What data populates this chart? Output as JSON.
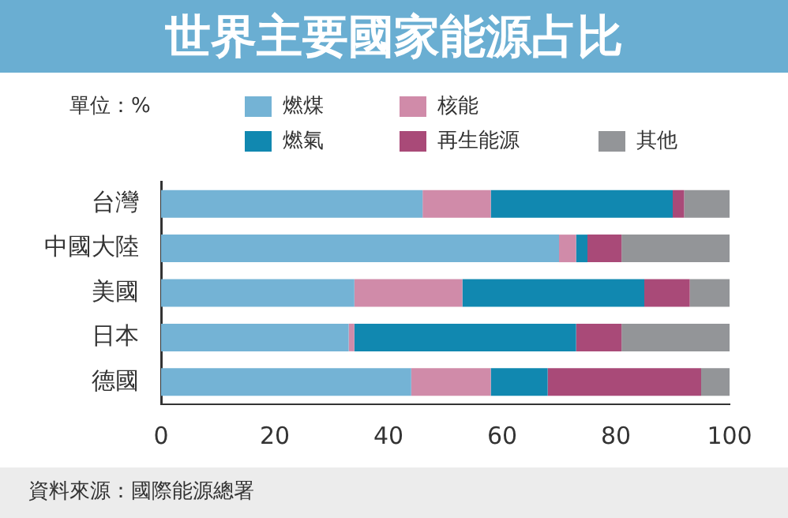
{
  "chart_data": {
    "type": "bar",
    "orientation": "horizontal",
    "stacked": true,
    "title": "世界主要國家能源占比",
    "categories": [
      "台灣",
      "中國大陸",
      "美國",
      "日本",
      "德國"
    ],
    "series": [
      {
        "name": "燃煤",
        "color": "#74b3d5",
        "values": [
          46,
          70,
          34,
          33,
          44
        ]
      },
      {
        "name": "核能",
        "color": "#d08ba9",
        "values": [
          12,
          3,
          19,
          1,
          14
        ]
      },
      {
        "name": "燃氣",
        "color": "#1188b0",
        "values": [
          32,
          2,
          32,
          39,
          10
        ]
      },
      {
        "name": "再生能源",
        "color": "#a94a78",
        "values": [
          2,
          6,
          8,
          8,
          27
        ]
      },
      {
        "name": "其他",
        "color": "#939598",
        "values": [
          8,
          19,
          7,
          19,
          5
        ]
      }
    ],
    "xlim": [
      0,
      100
    ],
    "xticks": [
      0,
      20,
      40,
      60,
      80,
      100
    ],
    "grid": false,
    "legend": "top",
    "annotations": [
      "單位：%",
      "資料來源：國際能源總署"
    ]
  }
}
